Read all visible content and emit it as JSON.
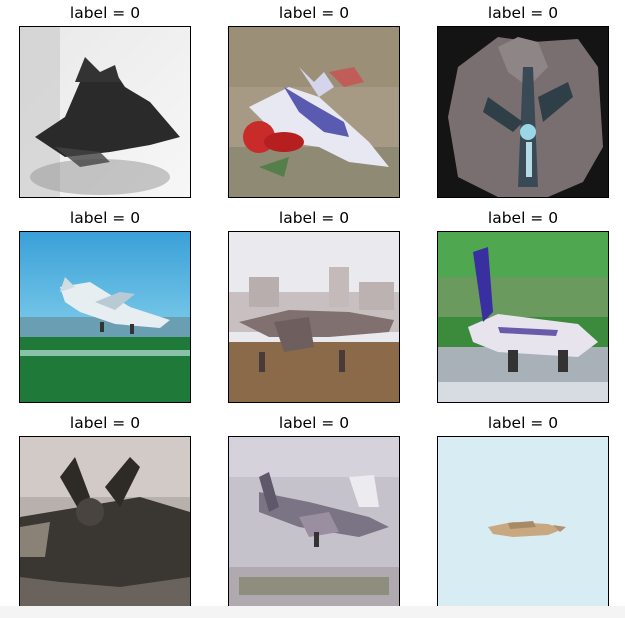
{
  "panels": [
    {
      "title": "label = 0",
      "subject": "dark-jet-on-white"
    },
    {
      "title": "label = 0",
      "subject": "fighter-jet-on-tan"
    },
    {
      "title": "label = 0",
      "subject": "aircraft-on-dark"
    },
    {
      "title": "label = 0",
      "subject": "airliner-takeoff-sky"
    },
    {
      "title": "label = 0",
      "subject": "parked-plane-airport"
    },
    {
      "title": "label = 0",
      "subject": "airliner-on-runway"
    },
    {
      "title": "label = 0",
      "subject": "propeller-plane-closeup"
    },
    {
      "title": "label = 0",
      "subject": "plane-landing-overcast"
    },
    {
      "title": "label = 0",
      "subject": "small-plane-pale-sky"
    }
  ]
}
